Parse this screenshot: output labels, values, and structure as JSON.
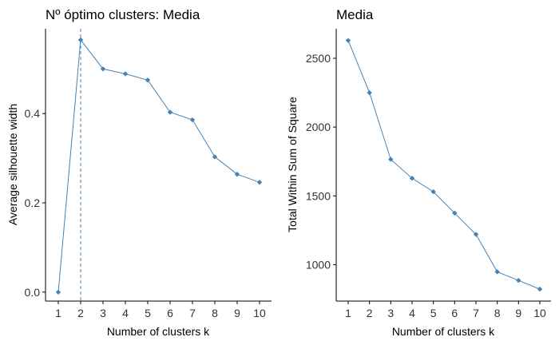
{
  "colors": {
    "series": "#4682b4",
    "axis": "#000000"
  },
  "chart_data": [
    {
      "type": "line",
      "title": "Nº óptimo clusters: Media",
      "xlabel": "Number of clusters k",
      "ylabel": "Average silhouette width",
      "x": [
        1,
        2,
        3,
        4,
        5,
        6,
        7,
        8,
        9,
        10
      ],
      "xticks": [
        "1",
        "2",
        "3",
        "4",
        "5",
        "6",
        "7",
        "8",
        "9",
        "10"
      ],
      "values": [
        0.0,
        0.565,
        0.5,
        0.489,
        0.475,
        0.403,
        0.386,
        0.303,
        0.264,
        0.246
      ],
      "ylim": [
        -0.02,
        0.59
      ],
      "yticks": [
        0.0,
        0.2,
        0.4
      ],
      "ytick_labels": [
        "0.0",
        "0.2",
        "0.4"
      ],
      "vline_x": 2,
      "grid": false,
      "marker": "diamond"
    },
    {
      "type": "line",
      "title": "Media",
      "xlabel": "Number of clusters k",
      "ylabel": "Total Within Sum of Square",
      "x": [
        1,
        2,
        3,
        4,
        5,
        6,
        7,
        8,
        9,
        10
      ],
      "xticks": [
        "1",
        "2",
        "3",
        "4",
        "5",
        "6",
        "7",
        "8",
        "9",
        "10"
      ],
      "values": [
        2630,
        2250,
        1765,
        1628,
        1530,
        1375,
        1220,
        948,
        885,
        822
      ],
      "ylim": [
        735,
        2715
      ],
      "yticks": [
        1000,
        1500,
        2000,
        2500
      ],
      "ytick_labels": [
        "1000",
        "1500",
        "2000",
        "2500"
      ],
      "grid": false,
      "marker": "diamond"
    }
  ]
}
